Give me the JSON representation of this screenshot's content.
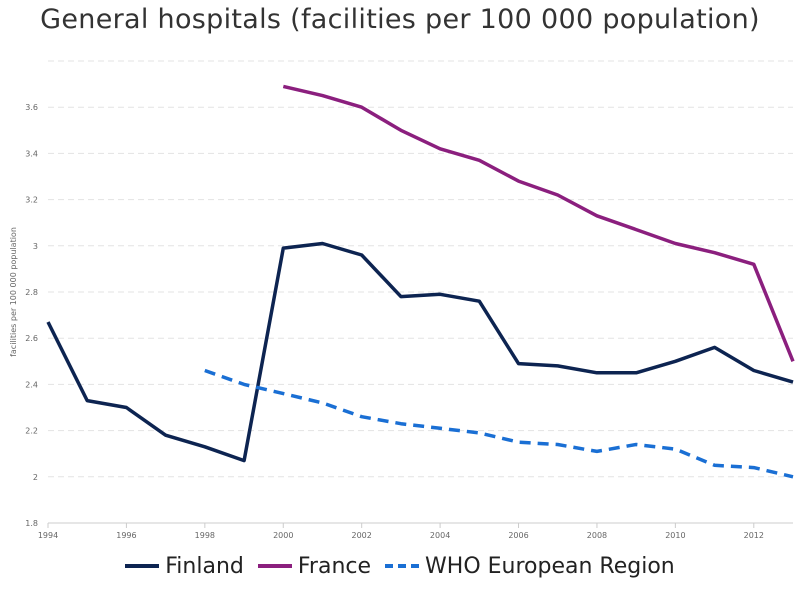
{
  "chart_data": {
    "type": "line",
    "title": "General hospitals (facilities per 100 000 population)",
    "xlabel": "",
    "ylabel": "facilities per 100 000 population",
    "xlim": [
      1994,
      2013
    ],
    "ylim": [
      1.8,
      3.8
    ],
    "x_ticks": [
      "1994",
      "1996",
      "1998",
      "2000",
      "2002",
      "2004",
      "2006",
      "2008",
      "2010",
      "2012"
    ],
    "y_ticks": [
      "1.8",
      "2",
      "2.2",
      "2.4",
      "2.6",
      "2.8",
      "3",
      "3.2",
      "3.4",
      "3.6"
    ],
    "grid": true,
    "legend_position": "bottom",
    "series": [
      {
        "name": "Finland",
        "color": "#0d2451",
        "dash": "solid",
        "x": [
          1994,
          1995,
          1996,
          1997,
          1998,
          1999,
          2000,
          2001,
          2002,
          2003,
          2004,
          2005,
          2006,
          2007,
          2008,
          2009,
          2010,
          2011,
          2012,
          2013
        ],
        "values": [
          2.67,
          2.33,
          2.3,
          2.18,
          2.13,
          2.07,
          2.99,
          3.01,
          2.96,
          2.78,
          2.79,
          2.76,
          2.49,
          2.48,
          2.45,
          2.45,
          2.5,
          2.56,
          2.46,
          2.41
        ]
      },
      {
        "name": "France",
        "color": "#8b1f7e",
        "dash": "solid",
        "x": [
          2000,
          2001,
          2002,
          2003,
          2004,
          2005,
          2006,
          2007,
          2008,
          2009,
          2010,
          2011,
          2012,
          2013
        ],
        "values": [
          3.69,
          3.65,
          3.6,
          3.5,
          3.42,
          3.37,
          3.28,
          3.22,
          3.13,
          3.07,
          3.01,
          2.97,
          2.92,
          2.5
        ]
      },
      {
        "name": "WHO European Region",
        "color": "#1a6fd4",
        "dash": "dashed",
        "x": [
          1998,
          1999,
          2000,
          2001,
          2002,
          2003,
          2004,
          2005,
          2006,
          2007,
          2008,
          2009,
          2010,
          2011,
          2012,
          2013
        ],
        "values": [
          2.46,
          2.4,
          2.36,
          2.32,
          2.26,
          2.23,
          2.21,
          2.19,
          2.15,
          2.14,
          2.11,
          2.14,
          2.12,
          2.05,
          2.04,
          2.0
        ]
      }
    ]
  }
}
